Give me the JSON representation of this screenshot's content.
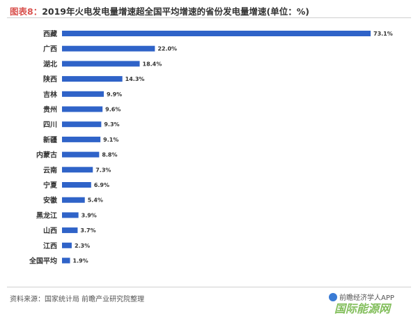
{
  "header": {
    "prefix": "图表8：",
    "text": "2019年火电发电量增速超全国平均增速的省份发电量增速(单位：%)"
  },
  "chart_data": {
    "type": "bar",
    "orientation": "horizontal",
    "categories": [
      "西藏",
      "广西",
      "湖北",
      "陕西",
      "吉林",
      "贵州",
      "四川",
      "新疆",
      "内蒙古",
      "云南",
      "宁夏",
      "安徽",
      "黑龙江",
      "山西",
      "江西",
      "全国平均"
    ],
    "values": [
      73.1,
      22.0,
      18.4,
      14.3,
      9.9,
      9.6,
      9.3,
      9.1,
      8.8,
      7.3,
      6.9,
      5.4,
      3.9,
      3.7,
      2.3,
      1.9
    ],
    "value_labels": [
      "73.1%",
      "22.0%",
      "18.4%",
      "14.3%",
      "9.9%",
      "9.6%",
      "9.3%",
      "9.1%",
      "8.8%",
      "7.3%",
      "6.9%",
      "5.4%",
      "3.9%",
      "3.7%",
      "2.3%",
      "1.9%"
    ],
    "xlim": [
      0,
      73.1
    ],
    "grid": false,
    "bar_color": "#2f63c8"
  },
  "footer": {
    "source": "资料来源：国家统计局 前瞻产业研究院整理",
    "brand": "前瞻经济学人APP",
    "corner_mark": "国际能源网"
  }
}
